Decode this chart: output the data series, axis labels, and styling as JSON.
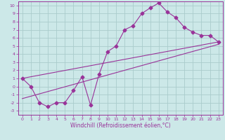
{
  "title": "",
  "xlabel": "Windchill (Refroidissement éolien,°C)",
  "ylabel": "",
  "xlim": [
    -0.5,
    23.5
  ],
  "ylim": [
    -3.5,
    10.5
  ],
  "xticks": [
    0,
    1,
    2,
    3,
    4,
    5,
    6,
    7,
    8,
    9,
    10,
    11,
    12,
    13,
    14,
    15,
    16,
    17,
    18,
    19,
    20,
    21,
    22,
    23
  ],
  "yticks": [
    -3,
    -2,
    -1,
    0,
    1,
    2,
    3,
    4,
    5,
    6,
    7,
    8,
    9,
    10
  ],
  "bg_color": "#cce8e8",
  "grid_color": "#aacccc",
  "line_color": "#993399",
  "series1_x": [
    0,
    1,
    2,
    3,
    4,
    5,
    6,
    7,
    8,
    9,
    10,
    11,
    12,
    13,
    14,
    15,
    16,
    17,
    18,
    19,
    20,
    21,
    22,
    23
  ],
  "series1_y": [
    1,
    0,
    -2,
    -2.5,
    -2,
    -2,
    -0.5,
    1.2,
    -2.3,
    1.5,
    4.3,
    5,
    7,
    7.5,
    9,
    9.7,
    10.3,
    9.2,
    8.5,
    7.3,
    6.7,
    6.3,
    6.3,
    5.5
  ],
  "series2_x": [
    0,
    23
  ],
  "series2_y": [
    1.0,
    5.5
  ],
  "series3_x": [
    0,
    23
  ],
  "series3_y": [
    -1.5,
    5.2
  ],
  "marker": "D",
  "markersize": 2.5,
  "linewidth": 0.8,
  "tick_fontsize": 4.5,
  "xlabel_fontsize": 5.5
}
